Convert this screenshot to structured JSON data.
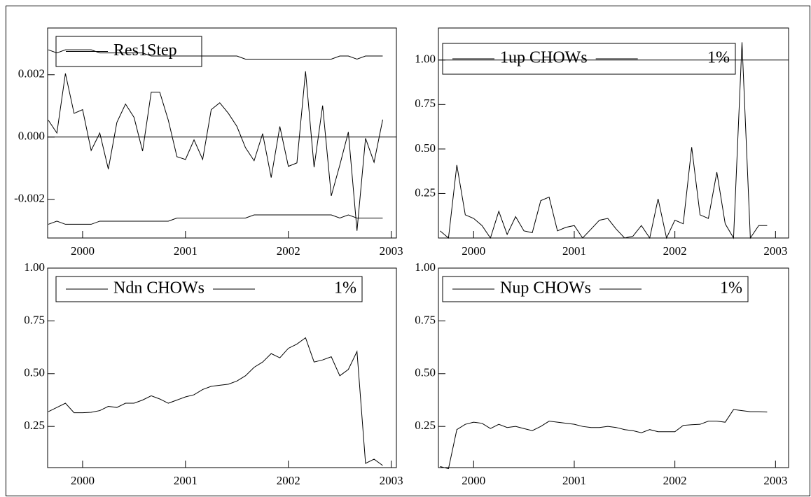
{
  "chart_data": [
    {
      "type": "line",
      "x": [
        1999.667,
        1999.75,
        1999.833,
        1999.917,
        2000,
        2000.083,
        2000.167,
        2000.25,
        2000.333,
        2000.417,
        2000.5,
        2000.583,
        2000.667,
        2000.75,
        2000.833,
        2000.917,
        2001,
        2001.083,
        2001.167,
        2001.25,
        2001.333,
        2001.417,
        2001.5,
        2001.583,
        2001.667,
        2001.75,
        2001.833,
        2001.917,
        2002,
        2002.083,
        2002.167,
        2002.25,
        2002.333,
        2002.417,
        2002.5,
        2002.583,
        2002.667,
        2002.75,
        2002.833,
        2002.917
      ],
      "series": [
        {
          "name": "Res1Step",
          "color": "#000000",
          "values": [
            0.00054,
            0.00013,
            0.00204,
            0.00076,
            0.00088,
            -0.00043,
            0.00013,
            -0.00103,
            0.00047,
            0.00106,
            0.00063,
            -0.00045,
            0.00144,
            0.00144,
            0.00054,
            -0.00063,
            -0.00072,
            -9e-05,
            -0.00072,
            0.00088,
            0.0011,
            0.00076,
            0.00034,
            -0.00034,
            -0.00076,
            0.00011,
            -0.0013,
            0.00034,
            -0.00094,
            -0.00083,
            0.00211,
            -0.00097,
            0.00101,
            -0.00189,
            -0.0009,
            0.00016,
            -0.00301,
            -4e-05,
            -0.00081,
            0.00056
          ]
        },
        {
          "color": "#000000",
          "values": [
            0.0028,
            0.0027,
            0.0028,
            0.0028,
            0.0028,
            0.0028,
            0.0027,
            0.0027,
            0.0027,
            0.0027,
            0.0027,
            0.0027,
            0.0026,
            0.0026,
            0.0026,
            0.0026,
            0.0026,
            0.0026,
            0.0026,
            0.0026,
            0.0026,
            0.0026,
            0.0026,
            0.0025,
            0.0025,
            0.0025,
            0.0025,
            0.0025,
            0.0025,
            0.0025,
            0.0025,
            0.0025,
            0.0025,
            0.0025,
            0.0026,
            0.0026,
            0.0025,
            0.0026,
            0.0026,
            0.0026
          ]
        },
        {
          "color": "#000000",
          "values": [
            -0.0028,
            -0.0027,
            -0.0028,
            -0.0028,
            -0.0028,
            -0.0028,
            -0.0027,
            -0.0027,
            -0.0027,
            -0.0027,
            -0.0027,
            -0.0027,
            -0.0027,
            -0.0027,
            -0.0027,
            -0.0026,
            -0.0026,
            -0.0026,
            -0.0026,
            -0.0026,
            -0.0026,
            -0.0026,
            -0.0026,
            -0.0026,
            -0.0025,
            -0.0025,
            -0.0025,
            -0.0025,
            -0.0025,
            -0.0025,
            -0.0025,
            -0.0025,
            -0.0025,
            -0.0025,
            -0.0026,
            -0.0025,
            -0.0026,
            -0.0026,
            -0.0026,
            -0.0026
          ]
        }
      ],
      "hline": 0,
      "xlim": [
        1999.66,
        2003.05
      ],
      "xticks": [
        2000,
        2001,
        2002,
        2003
      ],
      "ylim": [
        -0.00324,
        0.0035
      ],
      "yticks": [
        0.002,
        {
          "value": 0,
          "label": "0.000"
        },
        -0.002
      ]
    },
    {
      "type": "line",
      "x": [
        1999.667,
        1999.75,
        1999.833,
        1999.917,
        2000,
        2000.083,
        2000.167,
        2000.25,
        2000.333,
        2000.417,
        2000.5,
        2000.583,
        2000.667,
        2000.75,
        2000.833,
        2000.917,
        2001,
        2001.083,
        2001.167,
        2001.25,
        2001.333,
        2001.417,
        2001.5,
        2001.583,
        2001.667,
        2001.75,
        2001.833,
        2001.917,
        2002,
        2002.083,
        2002.167,
        2002.25,
        2002.333,
        2002.417,
        2002.5,
        2002.583,
        2002.667,
        2002.75,
        2002.833,
        2002.917
      ],
      "series": [
        {
          "name": "1up CHOWs",
          "color": "#000000",
          "values": [
            0.04,
            0.0,
            0.41,
            0.13,
            0.11,
            0.07,
            0.0,
            0.15,
            0.02,
            0.12,
            0.04,
            0.03,
            0.21,
            0.23,
            0.04,
            0.06,
            0.07,
            0.0,
            0.05,
            0.1,
            0.11,
            0.05,
            0.0,
            0.01,
            0.07,
            0.0,
            0.22,
            0.0,
            0.1,
            0.08,
            0.51,
            0.13,
            0.11,
            0.37,
            0.08,
            0.0,
            1.1,
            0.0,
            0.07,
            0.07
          ]
        },
        {
          "name": "1%",
          "color": "#000000",
          "value": 1
        }
      ],
      "xlim": [
        1999.65,
        2003.13
      ],
      "xticks": [
        2000,
        2001,
        2002,
        2003
      ],
      "ylim": [
        0,
        1.18
      ],
      "yticks": [
        0.25,
        {
          "value": 0.5,
          "label": "0.50"
        },
        {
          "value": 0.75,
          "label": "0.75"
        },
        {
          "value": 1,
          "label": "1.00"
        }
      ]
    },
    {
      "type": "line",
      "x": [
        1999.667,
        1999.75,
        1999.833,
        1999.917,
        2000,
        2000.083,
        2000.167,
        2000.25,
        2000.333,
        2000.417,
        2000.5,
        2000.583,
        2000.667,
        2000.75,
        2000.833,
        2000.917,
        2001,
        2001.083,
        2001.167,
        2001.25,
        2001.333,
        2001.417,
        2001.5,
        2001.583,
        2001.667,
        2001.75,
        2001.833,
        2001.917,
        2002,
        2002.083,
        2002.167,
        2002.25,
        2002.333,
        2002.417,
        2002.5,
        2002.583,
        2002.667,
        2002.75,
        2002.833,
        2002.917
      ],
      "series": [
        {
          "name": "Ndn CHOWs",
          "color": "#000000",
          "values": [
            0.32,
            0.34,
            0.36,
            0.315,
            0.315,
            0.317,
            0.325,
            0.345,
            0.34,
            0.36,
            0.36,
            0.375,
            0.395,
            0.38,
            0.36,
            0.375,
            0.39,
            0.4,
            0.425,
            0.44,
            0.445,
            0.45,
            0.465,
            0.49,
            0.53,
            0.555,
            0.595,
            0.575,
            0.62,
            0.64,
            0.67,
            0.555,
            0.565,
            0.58,
            0.49,
            0.52,
            0.605,
            0.075,
            0.095,
            0.065
          ]
        },
        {
          "name": "1%",
          "color": "#000000",
          "value": 1
        }
      ],
      "xlim": [
        1999.66,
        2003.05
      ],
      "xticks": [
        2000,
        2001,
        2002,
        2003
      ],
      "ylim": [
        0.055,
        1
      ],
      "yticks": [
        0.25,
        {
          "value": 0.5,
          "label": "0.50"
        },
        {
          "value": 0.75,
          "label": "0.75"
        },
        {
          "value": 1,
          "label": "1.00"
        }
      ]
    },
    {
      "type": "line",
      "x": [
        1999.667,
        1999.75,
        1999.833,
        1999.917,
        2000,
        2000.083,
        2000.167,
        2000.25,
        2000.333,
        2000.417,
        2000.5,
        2000.583,
        2000.667,
        2000.75,
        2000.833,
        2000.917,
        2001,
        2001.083,
        2001.167,
        2001.25,
        2001.333,
        2001.417,
        2001.5,
        2001.583,
        2001.667,
        2001.75,
        2001.833,
        2001.917,
        2002,
        2002.083,
        2002.167,
        2002.25,
        2002.333,
        2002.417,
        2002.5,
        2002.583,
        2002.667,
        2002.75,
        2002.833,
        2002.917
      ],
      "series": [
        {
          "name": "Nup CHOWs",
          "color": "#000000",
          "values": [
            0.06,
            0.05,
            0.235,
            0.26,
            0.27,
            0.265,
            0.24,
            0.26,
            0.245,
            0.25,
            0.24,
            0.23,
            0.25,
            0.275,
            0.27,
            0.265,
            0.26,
            0.25,
            0.245,
            0.245,
            0.25,
            0.245,
            0.235,
            0.23,
            0.22,
            0.235,
            0.225,
            0.225,
            0.225,
            0.255,
            0.258,
            0.26,
            0.275,
            0.275,
            0.27,
            0.33,
            0.325,
            0.32,
            0.32,
            0.318
          ]
        },
        {
          "name": "1%",
          "color": "#000000",
          "value": 1
        }
      ],
      "xlim": [
        1999.65,
        2003.13
      ],
      "xticks": [
        2000,
        2001,
        2002,
        2003
      ],
      "ylim": [
        0.055,
        1
      ],
      "yticks": [
        0.25,
        {
          "value": 0.5,
          "label": "0.50"
        },
        {
          "value": 0.75,
          "label": "0.75"
        },
        {
          "value": 1,
          "label": "1.00"
        }
      ]
    }
  ]
}
